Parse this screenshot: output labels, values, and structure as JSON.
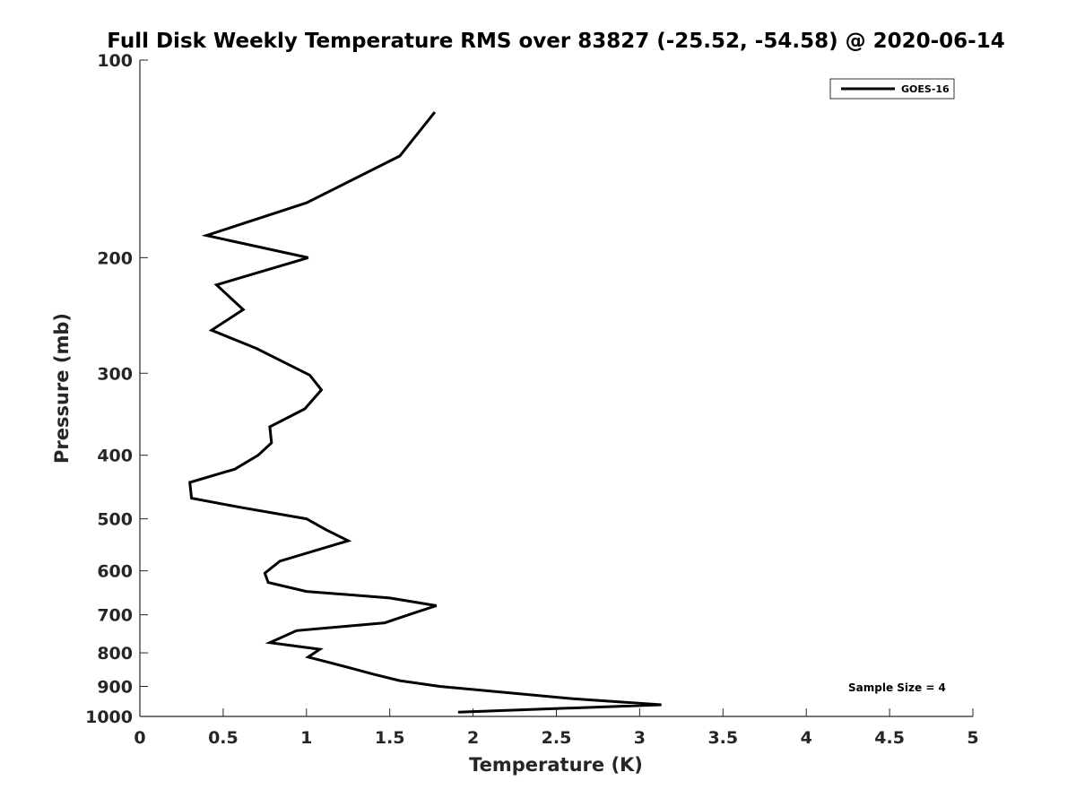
{
  "chart_data": {
    "type": "line",
    "title": "Full Disk Weekly Temperature RMS over 83827 (-25.52, -54.58) @ 2020-06-14",
    "xlabel": "Temperature (K)",
    "ylabel": "Pressure (mb)",
    "xlim": [
      0,
      5
    ],
    "ylim": [
      100,
      1000
    ],
    "y_scale": "log",
    "y_reversed": true,
    "xticks": [
      0,
      0.5,
      1,
      1.5,
      2,
      2.5,
      3,
      3.5,
      4,
      4.5,
      5
    ],
    "xtick_labels": [
      "0",
      "0.5",
      "1",
      "1.5",
      "2",
      "2.5",
      "3",
      "3.5",
      "4",
      "4.5",
      "5"
    ],
    "yticks": [
      100,
      200,
      300,
      400,
      500,
      600,
      700,
      800,
      900,
      1000
    ],
    "ytick_labels": [
      "100",
      "200",
      "300",
      "400",
      "500",
      "600",
      "700",
      "800",
      "900",
      "1000"
    ],
    "grid": false,
    "legend_position": "top-right",
    "annotation": "Sample Size = 4",
    "series": [
      {
        "name": "GOES-16",
        "color": "#000000",
        "points": [
          [
            1.77,
            120
          ],
          [
            1.56,
            140
          ],
          [
            1.0,
            165
          ],
          [
            0.4,
            185
          ],
          [
            1.01,
            200
          ],
          [
            0.46,
            220
          ],
          [
            0.62,
            240
          ],
          [
            0.43,
            258
          ],
          [
            0.7,
            275
          ],
          [
            1.02,
            302
          ],
          [
            1.09,
            318
          ],
          [
            0.99,
            340
          ],
          [
            0.78,
            362
          ],
          [
            0.79,
            383
          ],
          [
            0.71,
            400
          ],
          [
            0.57,
            420
          ],
          [
            0.3,
            440
          ],
          [
            0.31,
            465
          ],
          [
            0.6,
            480
          ],
          [
            1.0,
            500
          ],
          [
            1.12,
            520
          ],
          [
            1.25,
            540
          ],
          [
            0.84,
            580
          ],
          [
            0.75,
            605
          ],
          [
            0.77,
            625
          ],
          [
            1.0,
            645
          ],
          [
            1.5,
            660
          ],
          [
            1.78,
            678
          ],
          [
            1.65,
            695
          ],
          [
            1.47,
            720
          ],
          [
            0.94,
            740
          ],
          [
            0.78,
            772
          ],
          [
            1.08,
            790
          ],
          [
            1.01,
            812
          ],
          [
            1.25,
            842
          ],
          [
            1.4,
            862
          ],
          [
            1.56,
            882
          ],
          [
            1.8,
            900
          ],
          [
            2.6,
            940
          ],
          [
            3.13,
            960
          ],
          [
            1.91,
            985
          ]
        ]
      }
    ]
  }
}
